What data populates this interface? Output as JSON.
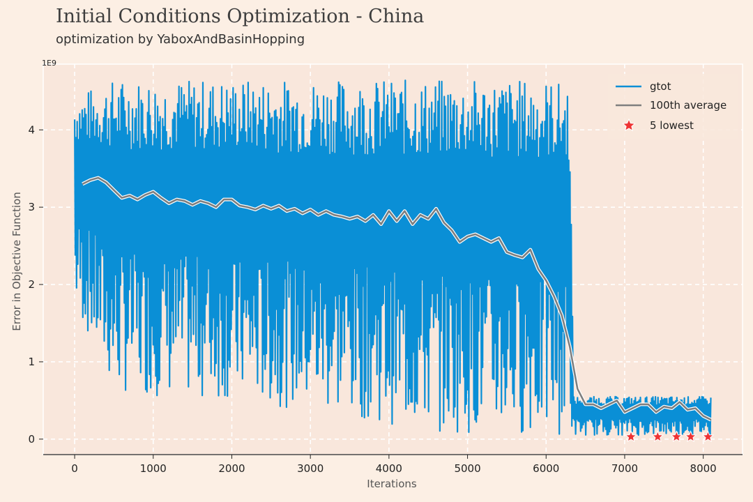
{
  "title": "Initial Conditions Optimization - China",
  "subtitle": "optimization by YaboxAndBasinHopping",
  "chart_data": {
    "type": "line",
    "xlabel": "Iterations",
    "ylabel": "Error in Objective Function",
    "y_scale_label": "1E9",
    "xlim": [
      -400,
      8500
    ],
    "ylim": [
      -0.2,
      4.85
    ],
    "x_ticks": [
      0,
      1000,
      2000,
      3000,
      4000,
      5000,
      6000,
      7000,
      8000
    ],
    "y_ticks": [
      0,
      1,
      2,
      3,
      4
    ],
    "grid": true,
    "legend_position": "top-right",
    "legend": [
      "gtot",
      "100th average",
      "5 lowest"
    ],
    "colors": {
      "gtot": "#0a8fd6",
      "average": "#7f7f7f",
      "lowest": "#ee3333",
      "plot_bg": "#f9e7dc"
    },
    "series": [
      {
        "name": "gtot",
        "kind": "noisy-band",
        "x_range": [
          0,
          8100
        ],
        "envelope": [
          {
            "x": 0,
            "low": 1.7,
            "high": 4.45
          },
          {
            "x": 500,
            "low": 0.6,
            "high": 4.65
          },
          {
            "x": 2000,
            "low": 0.5,
            "high": 4.65
          },
          {
            "x": 3500,
            "low": 0.3,
            "high": 4.65
          },
          {
            "x": 4500,
            "low": 0.1,
            "high": 4.65
          },
          {
            "x": 6000,
            "low": 0.05,
            "high": 4.65
          },
          {
            "x": 6300,
            "low": 0.05,
            "high": 4.6
          },
          {
            "x": 6350,
            "low": 0.05,
            "high": 0.55
          },
          {
            "x": 8100,
            "low": 0.05,
            "high": 0.55
          }
        ]
      },
      {
        "name": "100th average",
        "x": [
          100,
          200,
          300,
          400,
          500,
          600,
          700,
          800,
          900,
          1000,
          1100,
          1200,
          1300,
          1400,
          1500,
          1600,
          1700,
          1800,
          1900,
          2000,
          2100,
          2200,
          2300,
          2400,
          2500,
          2600,
          2700,
          2800,
          2900,
          3000,
          3100,
          3200,
          3300,
          3400,
          3500,
          3600,
          3700,
          3800,
          3900,
          4000,
          4100,
          4200,
          4300,
          4400,
          4500,
          4600,
          4700,
          4800,
          4900,
          5000,
          5100,
          5200,
          5300,
          5400,
          5500,
          5600,
          5700,
          5800,
          5900,
          6000,
          6100,
          6200,
          6300,
          6400,
          6500,
          6600,
          6700,
          6800,
          6900,
          7000,
          7100,
          7200,
          7300,
          7400,
          7500,
          7600,
          7700,
          7800,
          7900,
          8000,
          8100
        ],
        "values": [
          3.3,
          3.35,
          3.38,
          3.32,
          3.22,
          3.12,
          3.15,
          3.1,
          3.16,
          3.2,
          3.12,
          3.05,
          3.1,
          3.08,
          3.03,
          3.08,
          3.05,
          3.0,
          3.1,
          3.1,
          3.02,
          3.0,
          2.97,
          3.02,
          2.98,
          3.02,
          2.95,
          2.98,
          2.92,
          2.97,
          2.9,
          2.95,
          2.9,
          2.88,
          2.85,
          2.88,
          2.82,
          2.9,
          2.78,
          2.95,
          2.82,
          2.95,
          2.78,
          2.9,
          2.85,
          2.98,
          2.8,
          2.7,
          2.55,
          2.62,
          2.65,
          2.6,
          2.55,
          2.6,
          2.42,
          2.38,
          2.35,
          2.45,
          2.2,
          2.05,
          1.85,
          1.6,
          1.2,
          0.65,
          0.45,
          0.45,
          0.4,
          0.45,
          0.5,
          0.35,
          0.4,
          0.45,
          0.45,
          0.35,
          0.42,
          0.4,
          0.48,
          0.38,
          0.4,
          0.3,
          0.25
        ]
      },
      {
        "name": "5 lowest",
        "x": [
          7080,
          7420,
          7660,
          7840,
          8060
        ],
        "values": [
          0.03,
          0.03,
          0.03,
          0.03,
          0.03
        ]
      }
    ]
  }
}
